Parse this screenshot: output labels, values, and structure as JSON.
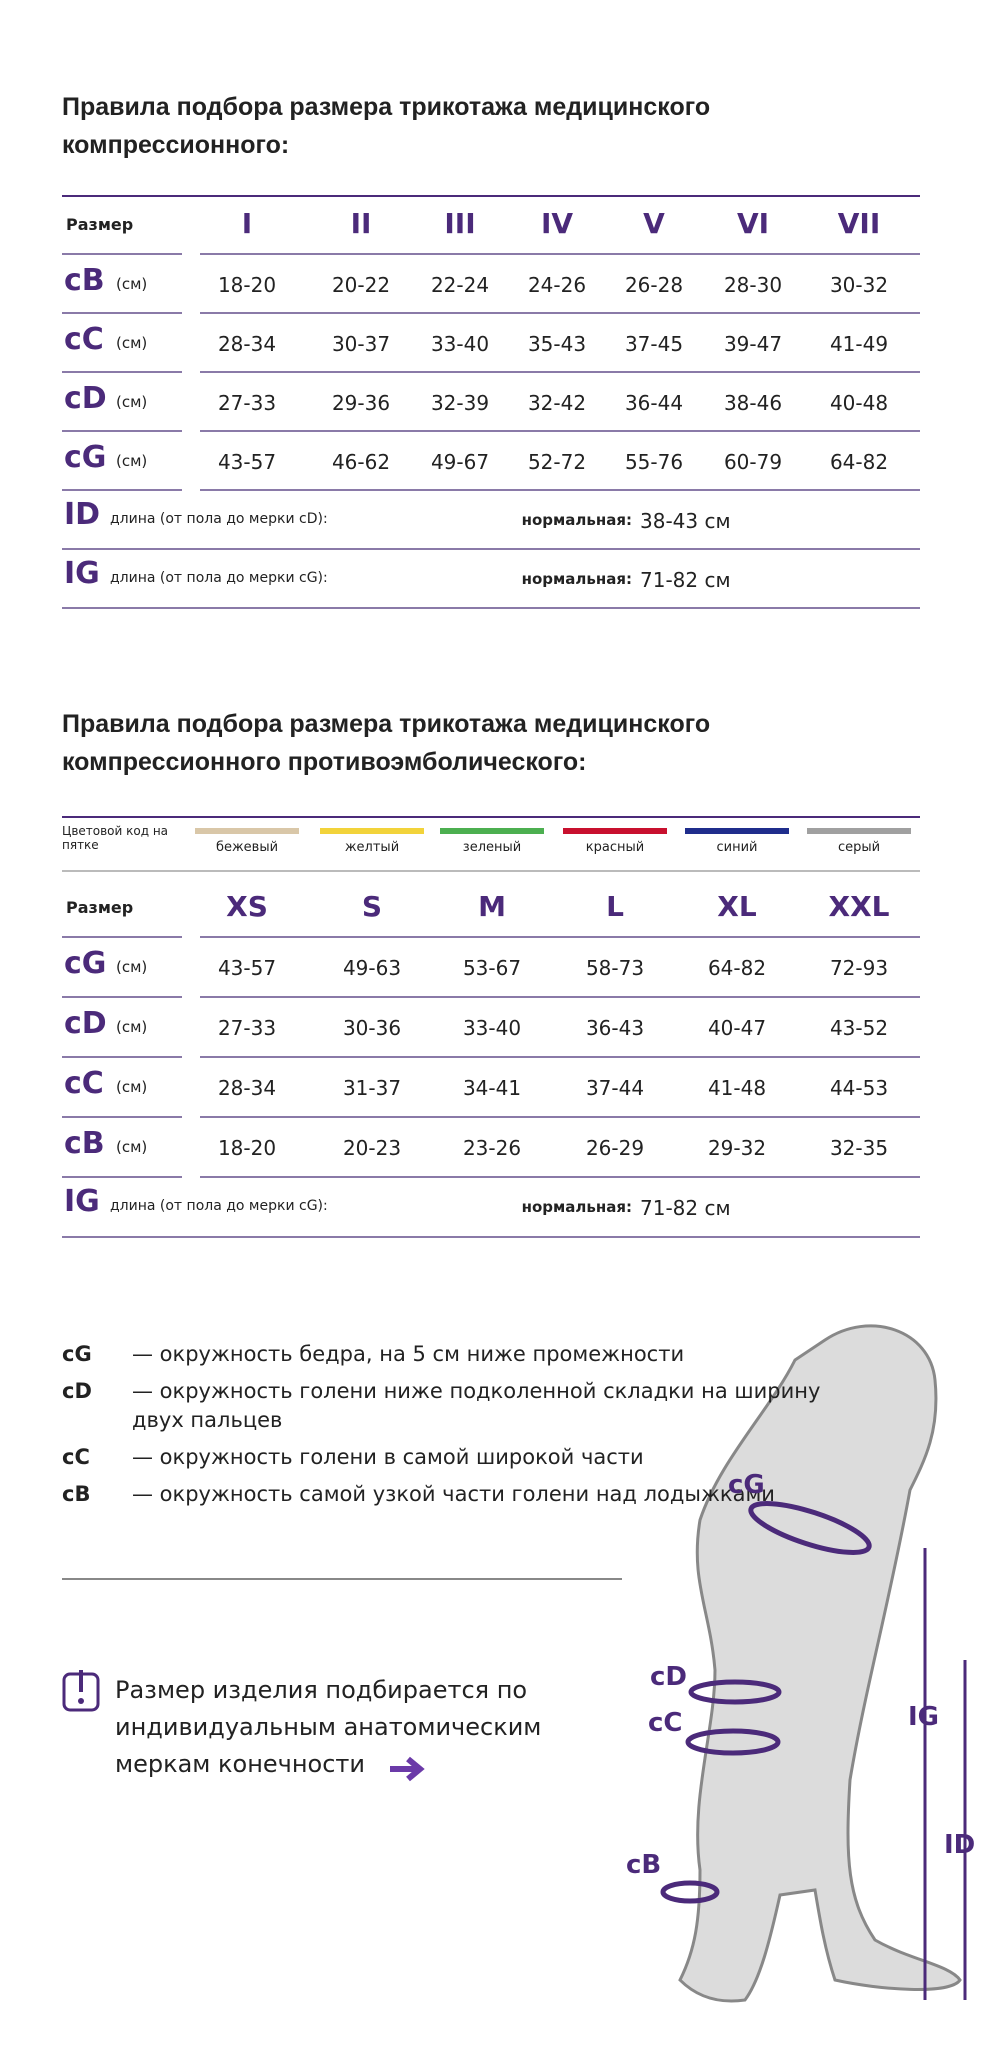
{
  "table1": {
    "title": "Правила подбора размера трикотажа медицинского компрессионного:",
    "header": "Размер",
    "sizes": [
      "I",
      "II",
      "III",
      "IV",
      "V",
      "VI",
      "VII"
    ],
    "rows": [
      {
        "label": "cB",
        "unit": "(см)",
        "values": [
          "18-20",
          "20-22",
          "22-24",
          "24-26",
          "26-28",
          "28-30",
          "30-32"
        ]
      },
      {
        "label": "cC",
        "unit": "(см)",
        "values": [
          "28-34",
          "30-37",
          "33-40",
          "35-43",
          "37-45",
          "39-47",
          "41-49"
        ]
      },
      {
        "label": "cD",
        "unit": "(см)",
        "values": [
          "27-33",
          "29-36",
          "32-39",
          "32-42",
          "36-44",
          "38-46",
          "40-48"
        ]
      },
      {
        "label": "cG",
        "unit": "(см)",
        "values": [
          "43-57",
          "46-62",
          "49-67",
          "52-72",
          "55-76",
          "60-79",
          "64-82"
        ]
      }
    ],
    "lengths": [
      {
        "label": "ID",
        "description": "длина (от пола до мерки cD):",
        "norm_label": "нормальная:",
        "norm_value": "38-43 см"
      },
      {
        "label": "IG",
        "description": "длина (от пола до мерки cG):",
        "norm_label": "нормальная:",
        "norm_value": "71-82 см"
      }
    ]
  },
  "table2": {
    "title": "Правила подбора размера трикотажа медицинского компрессионного противоэмболического:",
    "color_header": "Цветовой код на пятке",
    "colors": [
      {
        "name": "бежевый",
        "color": "#d9c7a8"
      },
      {
        "name": "желтый",
        "color": "#f2d33a"
      },
      {
        "name": "зеленый",
        "color": "#4caf50"
      },
      {
        "name": "красный",
        "color": "#c8102e"
      },
      {
        "name": "синий",
        "color": "#1f2d8c"
      },
      {
        "name": "серый",
        "color": "#a0a0a0"
      }
    ],
    "header": "Размер",
    "sizes": [
      "XS",
      "S",
      "M",
      "L",
      "XL",
      "XXL"
    ],
    "rows": [
      {
        "label": "cG",
        "unit": "(см)",
        "values": [
          "43-57",
          "49-63",
          "53-67",
          "58-73",
          "64-82",
          "72-93"
        ]
      },
      {
        "label": "cD",
        "unit": "(см)",
        "values": [
          "27-33",
          "30-36",
          "33-40",
          "36-43",
          "40-47",
          "43-52"
        ]
      },
      {
        "label": "cC",
        "unit": "(см)",
        "values": [
          "28-34",
          "31-37",
          "34-41",
          "37-44",
          "41-48",
          "44-53"
        ]
      },
      {
        "label": "cB",
        "unit": "(см)",
        "values": [
          "18-20",
          "20-23",
          "23-26",
          "26-29",
          "29-32",
          "32-35"
        ]
      }
    ],
    "lengths": [
      {
        "label": "IG",
        "description": "длина (от пола до мерки cG):",
        "norm_label": "нормальная:",
        "norm_value": "71-82 см"
      }
    ]
  },
  "legend": [
    {
      "term": "cG",
      "text": "— окружность бедра, на 5 см ниже промежности"
    },
    {
      "term": "cD",
      "text": "— окружность голени ниже подколенной складки на ширину двух пальцев"
    },
    {
      "term": "cC",
      "text": "— окружность голени в самой широкой части"
    },
    {
      "term": "cB",
      "text": "— окружность самой узкой части голени над лодыжками"
    }
  ],
  "note": "Размер изделия подбирается по индивидуальным анатомическим меркам конечности",
  "figure": {
    "cG": "cG",
    "cD": "cD",
    "cC": "cC",
    "cB": "cB",
    "IG": "IG",
    "ID": "ID"
  }
}
